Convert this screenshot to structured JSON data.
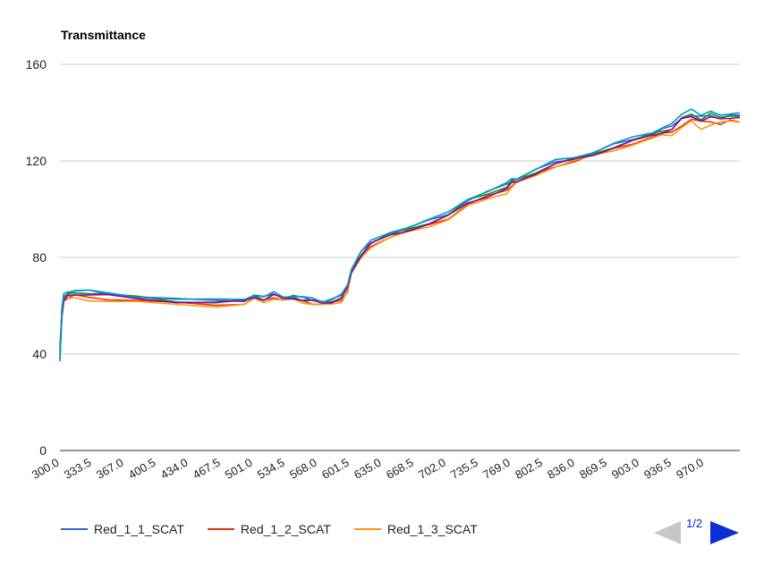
{
  "chart_data": {
    "type": "line",
    "title": "Transmittance",
    "xlabel": "",
    "ylabel": "",
    "ylim": [
      0,
      160
    ],
    "yticks": [
      0,
      40,
      80,
      120,
      160
    ],
    "xlim": [
      300,
      1000
    ],
    "xticks": [
      "300.0",
      "333.5",
      "367.0",
      "400.5",
      "434.0",
      "467.5",
      "501.0",
      "534.5",
      "568.0",
      "601.5",
      "635.0",
      "668.5",
      "702.0",
      "735.5",
      "769.0",
      "802.5",
      "836.0",
      "869.5",
      "903.0",
      "936.5",
      "970.0"
    ],
    "grid": true,
    "legend_position": "bottom",
    "series": [
      {
        "name": "Red_1_1_SCAT",
        "color": "#3366cc",
        "x": [
          300,
          302,
          304,
          308,
          315,
          330,
          350,
          380,
          420,
          460,
          490,
          500,
          510,
          520,
          530,
          540,
          550,
          560,
          570,
          580,
          590,
          596,
          600,
          610,
          620,
          640,
          660,
          680,
          700,
          720,
          740,
          760,
          765,
          770,
          790,
          810,
          830,
          850,
          870,
          890,
          910,
          920,
          930,
          940,
          950,
          960,
          970,
          980,
          990,
          1000
        ],
        "y": [
          41,
          58,
          64,
          65,
          66,
          66,
          65,
          64,
          62.5,
          62,
          62.3,
          64.5,
          63.2,
          65,
          63.5,
          64,
          63,
          62.5,
          61.8,
          62.4,
          64,
          68,
          75,
          82,
          86,
          90,
          92.5,
          95,
          98,
          104,
          107,
          110,
          112,
          112.5,
          116,
          119.5,
          121,
          123.5,
          126.5,
          129,
          131.5,
          133,
          134,
          138,
          139,
          138,
          138.5,
          138,
          139,
          139
        ]
      },
      {
        "name": "Red_1_2_SCAT",
        "color": "#dc3912",
        "x": [
          300,
          302,
          304,
          308,
          315,
          330,
          350,
          380,
          420,
          460,
          490,
          500,
          510,
          520,
          530,
          540,
          550,
          560,
          570,
          580,
          590,
          596,
          600,
          610,
          620,
          640,
          660,
          680,
          700,
          720,
          740,
          760,
          765,
          770,
          790,
          810,
          830,
          850,
          870,
          890,
          910,
          920,
          930,
          940,
          950,
          960,
          970,
          980,
          990,
          1000
        ],
        "y": [
          40,
          55,
          62,
          63,
          64,
          63.5,
          63,
          62,
          61,
          60.5,
          61,
          63,
          62,
          63.8,
          62.5,
          63,
          62,
          61.2,
          60.5,
          61,
          62.5,
          66,
          73,
          80,
          85,
          88.5,
          91,
          93.5,
          96.5,
          102,
          105,
          108,
          110,
          111,
          114.5,
          118,
          120,
          122.5,
          125,
          127.5,
          130,
          131,
          132,
          135,
          137,
          136,
          136.5,
          135.5,
          136.5,
          136
        ]
      },
      {
        "name": "Red_1_3_SCAT",
        "color": "#ff9900",
        "x": [
          300,
          302,
          304,
          308,
          315,
          330,
          350,
          380,
          420,
          460,
          490,
          500,
          510,
          520,
          530,
          540,
          550,
          560,
          570,
          580,
          590,
          596,
          600,
          610,
          620,
          640,
          660,
          680,
          700,
          720,
          740,
          760,
          765,
          770,
          790,
          810,
          830,
          850,
          870,
          890,
          910,
          920,
          930,
          940,
          950,
          960,
          970,
          980,
          990,
          1000
        ],
        "y": [
          39,
          58,
          63,
          62.5,
          63,
          62.5,
          62,
          61.2,
          60.5,
          60,
          60.5,
          62.5,
          61.5,
          63.2,
          62,
          62.5,
          61.5,
          60.8,
          60,
          60.5,
          62,
          66,
          73,
          80,
          84.5,
          88,
          90.5,
          93,
          96,
          101,
          104,
          107,
          109,
          110.5,
          114,
          118,
          120,
          122,
          124.5,
          127,
          129,
          130.5,
          131,
          134,
          136,
          133,
          135.5,
          136,
          136,
          136
        ]
      },
      {
        "name": "",
        "color": "#109618",
        "x": [
          300,
          302,
          304,
          308,
          315,
          330,
          350,
          380,
          420,
          460,
          490,
          500,
          510,
          520,
          530,
          540,
          550,
          560,
          570,
          580,
          590,
          596,
          600,
          610,
          620,
          640,
          660,
          680,
          700,
          720,
          740,
          760,
          765,
          770,
          790,
          810,
          830,
          850,
          870,
          890,
          910,
          920,
          930,
          940,
          950,
          960,
          970,
          980,
          990,
          1000
        ],
        "y": [
          37,
          56,
          63,
          64.5,
          65.5,
          65.5,
          64.5,
          63.5,
          62,
          61.5,
          62,
          64,
          62.8,
          64.6,
          63,
          63.5,
          62.5,
          62,
          61.3,
          62,
          63.5,
          67.5,
          74.5,
          81.5,
          85.8,
          89.5,
          92,
          94.5,
          97.5,
          103.5,
          106.5,
          109.5,
          111.5,
          112,
          115.5,
          119,
          120.8,
          123,
          126,
          128.5,
          131,
          132.5,
          133.5,
          137.5,
          139,
          137.5,
          140,
          137.5,
          138.5,
          138.5
        ]
      },
      {
        "name": "",
        "color": "#990099",
        "x": [
          300,
          302,
          304,
          308,
          315,
          330,
          350,
          380,
          420,
          460,
          490,
          500,
          510,
          520,
          530,
          540,
          550,
          560,
          570,
          580,
          590,
          596,
          600,
          610,
          620,
          640,
          660,
          680,
          700,
          720,
          740,
          760,
          765,
          770,
          790,
          810,
          830,
          850,
          870,
          890,
          910,
          920,
          930,
          940,
          950,
          960,
          970,
          980,
          990,
          1000
        ],
        "y": [
          42,
          57,
          62,
          64,
          65,
          64.5,
          64,
          63,
          61.8,
          61.2,
          61.7,
          63.8,
          62.6,
          64.3,
          62.8,
          63.3,
          62.3,
          61.8,
          61.1,
          61.7,
          63.2,
          67,
          74,
          81,
          85.5,
          89,
          91.5,
          94,
          97,
          102.5,
          105.5,
          108.5,
          110.5,
          111.5,
          115,
          118.5,
          120.5,
          122.8,
          125.5,
          128,
          130.5,
          132,
          133,
          137,
          138.5,
          137,
          138,
          137,
          138,
          138
        ]
      },
      {
        "name": "",
        "color": "#0099c6",
        "x": [
          300,
          302,
          304,
          308,
          315,
          330,
          350,
          380,
          420,
          460,
          490,
          500,
          510,
          520,
          530,
          540,
          550,
          560,
          570,
          580,
          590,
          596,
          600,
          610,
          620,
          640,
          660,
          680,
          700,
          720,
          740,
          760,
          765,
          770,
          790,
          810,
          830,
          850,
          870,
          890,
          910,
          920,
          930,
          940,
          950,
          960,
          970,
          980,
          990,
          1000
        ],
        "y": [
          38,
          59,
          65,
          66,
          66.5,
          66,
          65,
          64,
          62.8,
          62.2,
          62.6,
          64.8,
          63.5,
          65.3,
          63.8,
          64.3,
          63.3,
          62.8,
          62,
          62.7,
          64.3,
          68.5,
          75.5,
          82.5,
          86.5,
          90.5,
          93,
          95.5,
          98.5,
          104.5,
          107.5,
          110.5,
          112.5,
          113,
          116.5,
          120,
          121.5,
          124,
          127,
          129.5,
          132,
          134,
          135,
          139,
          142,
          139,
          140,
          139,
          140,
          140
        ]
      }
    ]
  },
  "pager": {
    "label": "1/2"
  }
}
